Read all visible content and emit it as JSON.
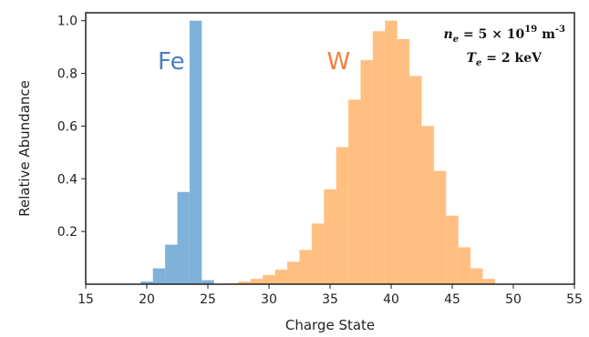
{
  "chart_data": {
    "type": "bar",
    "xlabel": "Charge State",
    "ylabel": "Relative Abundance",
    "xlim": [
      15,
      55
    ],
    "ylim": [
      0,
      1.03
    ],
    "xticks": [
      15,
      20,
      25,
      30,
      35,
      40,
      45,
      50,
      55
    ],
    "yticks": [
      0.2,
      0.4,
      0.6,
      0.8,
      1.0
    ],
    "xtick_labels": [
      "15",
      "20",
      "25",
      "30",
      "35",
      "40",
      "45",
      "50",
      "55"
    ],
    "ytick_labels": [
      "0.2",
      "0.4",
      "0.6",
      "0.8",
      "1.0"
    ],
    "grid": false,
    "series": [
      {
        "name": "Fe",
        "color": "#7fb2d9",
        "label_color": "#4a7ec8",
        "x": [
          20,
          21,
          22,
          23,
          24,
          25
        ],
        "values": [
          0.01,
          0.06,
          0.15,
          0.35,
          1.0,
          0.015
        ]
      },
      {
        "name": "W",
        "color": "#ffbf80",
        "label_color": "#f07f3c",
        "x": [
          27,
          28,
          29,
          30,
          31,
          32,
          33,
          34,
          35,
          36,
          37,
          38,
          39,
          40,
          41,
          42,
          43,
          44,
          45,
          46,
          47,
          48
        ],
        "values": [
          0.003,
          0.01,
          0.02,
          0.035,
          0.055,
          0.085,
          0.13,
          0.23,
          0.36,
          0.52,
          0.7,
          0.85,
          0.96,
          1.0,
          0.93,
          0.79,
          0.6,
          0.43,
          0.26,
          0.14,
          0.06,
          0.02
        ]
      }
    ],
    "annotation": {
      "line1_prefix": "n",
      "line1_sub": "e",
      "line1_mid": " = 5 × 10",
      "line1_sup": "19",
      "line1_unit": " m",
      "line1_unit_sup": "-3",
      "line2_prefix": "T",
      "line2_sub": "e",
      "line2_rest": " = 2 keV"
    }
  }
}
